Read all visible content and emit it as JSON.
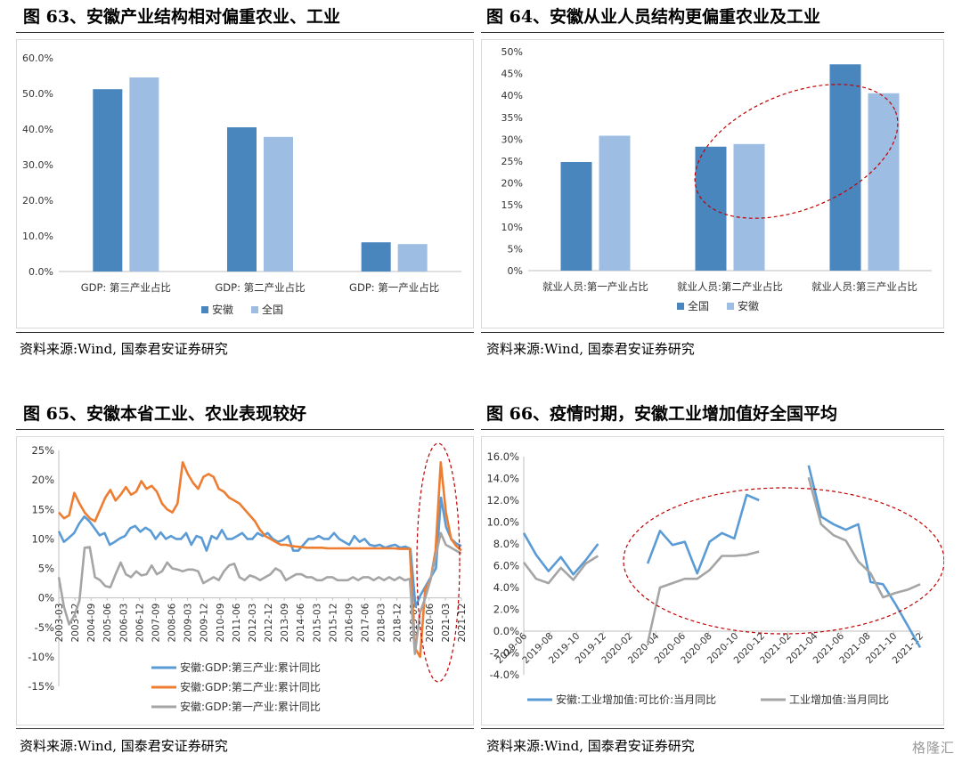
{
  "titles": {
    "p63": "图 63、安徽产业结构相对偏重农业、工业",
    "p64": "图 64、安徽从业人员结构更偏重农业及工业",
    "p65": "图 65、安徽本省工业、农业表现较好",
    "p66": "图 66、疫情时期，安徽工业增加值好全国平均"
  },
  "source_text": "资料来源:Wind, 国泰君安证券研究",
  "watermark": "格隆汇",
  "colors": {
    "dark_blue": "#4A86BE",
    "light_blue": "#9DBDE2",
    "orange": "#ED7D31",
    "gray": "#A5A5A5",
    "line_blue": "#5B9BD5",
    "ellipse": "#C00000"
  },
  "chart_data": [
    {
      "id": "p63",
      "type": "bar",
      "categories": [
        "GDP: 第三产业占比",
        "GDP: 第二产业占比",
        "GDP: 第一产业占比"
      ],
      "series": [
        {
          "name": "安徽",
          "values": [
            51.2,
            40.5,
            8.2
          ]
        },
        {
          "name": "全国",
          "values": [
            54.5,
            37.8,
            7.7
          ]
        }
      ],
      "ylim": [
        0,
        60
      ],
      "yticks": [
        "0.0%",
        "10.0%",
        "20.0%",
        "30.0%",
        "40.0%",
        "50.0%",
        "60.0%"
      ],
      "legend_position": "bottom"
    },
    {
      "id": "p64",
      "type": "bar",
      "categories": [
        "就业人员:第一产业占比",
        "就业人员:第二产业占比",
        "就业人员:第三产业占比"
      ],
      "series": [
        {
          "name": "全国",
          "values": [
            24.8,
            28.3,
            47.1
          ]
        },
        {
          "name": "安徽",
          "values": [
            30.8,
            28.9,
            40.5
          ]
        }
      ],
      "ylim": [
        0,
        50
      ],
      "yticks": [
        "0%",
        "5%",
        "10%",
        "15%",
        "20%",
        "25%",
        "30%",
        "35%",
        "40%",
        "45%",
        "50%"
      ],
      "legend_position": "bottom"
    },
    {
      "id": "p65",
      "type": "line",
      "x_ticks": [
        "2003-03",
        "2003-12",
        "2004-09",
        "2005-06",
        "2006-03",
        "2006-12",
        "2007-09",
        "2008-06",
        "2009-03",
        "2009-12",
        "2010-09",
        "2011-06",
        "2012-03",
        "2012-12",
        "2013-09",
        "2014-06",
        "2015-03",
        "2015-12",
        "2016-09",
        "2017-06",
        "2018-03",
        "2018-12",
        "2019-09",
        "2020-06",
        "2021-03",
        "2021-12"
      ],
      "ylim": [
        -15,
        25
      ],
      "yticks": [
        "-15%",
        "-10%",
        "-5%",
        "0%",
        "5%",
        "10%",
        "15%",
        "20%",
        "25%"
      ],
      "series": [
        {
          "name": "安徽:GDP:第三产业:累计同比",
          "color": "#5B9BD5",
          "values": [
            11.3,
            9.5,
            10.2,
            11.0,
            12.6,
            13.8,
            13.0,
            11.8,
            10.6,
            11.0,
            9.0,
            9.5,
            10.1,
            10.5,
            11.8,
            12.2,
            11.2,
            11.9,
            11.4,
            10.0,
            11.1,
            10.0,
            10.5,
            10.0,
            10.0,
            11.0,
            9.0,
            10.5,
            10.2,
            8.0,
            10.5,
            10.0,
            11.5,
            10.0,
            10.0,
            10.5,
            11.0,
            10.0,
            10.0,
            11.0,
            10.5,
            11.0,
            10.0,
            9.5,
            9.8,
            10.5,
            8.0,
            8.0,
            9.0,
            10.0,
            10.0,
            10.5,
            10.0,
            10.0,
            11.0,
            10.0,
            9.5,
            9.0,
            10.5,
            9.5,
            10.0,
            9.0,
            8.8,
            9.0,
            8.5,
            8.8,
            9.0,
            8.5,
            8.7,
            8.3,
            -1.5,
            0.5,
            2.0,
            3.5,
            5.0,
            17.0,
            12.0,
            10.0,
            9.2,
            8.8
          ]
        },
        {
          "name": "安徽:GDP:第二产业:累计同比",
          "color": "#ED7D31",
          "values": [
            14.5,
            13.5,
            14.0,
            17.8,
            16.0,
            14.5,
            13.5,
            13.0,
            15.0,
            17.0,
            18.3,
            16.5,
            17.5,
            18.8,
            17.5,
            18.0,
            19.8,
            18.5,
            19.0,
            18.0,
            16.0,
            15.0,
            14.5,
            16.0,
            23.0,
            21.0,
            19.5,
            18.5,
            20.5,
            21.0,
            20.5,
            18.5,
            18.0,
            17.0,
            16.5,
            16.0,
            15.0,
            14.0,
            13.0,
            11.5,
            10.5,
            10.0,
            9.5,
            9.0,
            9.0,
            8.8,
            8.7,
            8.6,
            8.5,
            8.5,
            8.5,
            8.5,
            8.4,
            8.4,
            8.4,
            8.4,
            8.4,
            8.4,
            8.4,
            8.4,
            8.4,
            8.4,
            8.4,
            8.4,
            8.4,
            8.4,
            8.3,
            8.3,
            8.3,
            -8.5,
            -10.0,
            1.5,
            3.0,
            8.0,
            23.0,
            14.5,
            10.0,
            8.8,
            8.0
          ]
        },
        {
          "name": "安徽:GDP:第一产业:累计同比",
          "color": "#A5A5A5",
          "values": [
            3.5,
            -1.5,
            -4.5,
            -3.0,
            -0.5,
            8.5,
            8.6,
            3.5,
            3.0,
            2.0,
            1.8,
            4.0,
            6.0,
            4.0,
            3.5,
            4.5,
            3.8,
            4.0,
            5.5,
            4.0,
            4.5,
            6.0,
            5.0,
            4.8,
            4.5,
            4.8,
            4.8,
            4.5,
            2.5,
            3.0,
            3.5,
            3.0,
            4.5,
            5.5,
            5.8,
            3.5,
            3.0,
            3.8,
            3.5,
            3.0,
            3.5,
            4.0,
            5.0,
            4.5,
            3.0,
            3.5,
            4.0,
            4.0,
            3.5,
            3.5,
            3.0,
            3.0,
            3.5,
            3.5,
            3.0,
            3.0,
            3.0,
            3.5,
            3.0,
            3.5,
            3.5,
            3.0,
            3.5,
            3.0,
            3.5,
            3.0,
            3.5,
            3.0,
            3.2,
            -9.5,
            -2.5,
            0.0,
            3.0,
            7.0,
            11.0,
            9.0,
            8.5,
            8.0,
            7.5
          ]
        }
      ],
      "legend_position": "bottom"
    },
    {
      "id": "p66",
      "type": "line",
      "x_ticks": [
        "2019-06",
        "2019-08",
        "2019-10",
        "2019-12",
        "2020-02",
        "2020-04",
        "2020-06",
        "2020-08",
        "2020-10",
        "2020-12",
        "2021-02",
        "2021-04",
        "2021-06",
        "2021-08",
        "2021-10",
        "2021-12"
      ],
      "ylim": [
        -4,
        16
      ],
      "yticks": [
        "-4.0%",
        "-2.0%",
        "0.0%",
        "2.0%",
        "4.0%",
        "6.0%",
        "8.0%",
        "10.0%",
        "12.0%",
        "14.0%",
        "16.0%"
      ],
      "series": [
        {
          "name": "安徽:工业增加值:可比价:当月同比",
          "color": "#5B9BD5",
          "values": [
            9.0,
            7.0,
            5.5,
            6.8,
            5.2,
            6.5,
            8.0,
            null,
            null,
            null,
            6.2,
            9.2,
            7.9,
            8.2,
            5.3,
            8.2,
            9.0,
            8.5,
            12.5,
            12.0,
            null,
            null,
            null,
            15.2,
            10.5,
            9.8,
            9.3,
            9.8,
            4.5,
            4.3,
            2.5,
            0.5,
            -1.5
          ]
        },
        {
          "name": "工业增加值:当月同比",
          "color": "#A5A5A5",
          "values": [
            6.3,
            4.8,
            4.4,
            5.8,
            4.7,
            6.2,
            6.9,
            null,
            null,
            null,
            -1.1,
            4.0,
            4.4,
            4.8,
            4.8,
            5.6,
            6.9,
            6.9,
            7.0,
            7.3,
            null,
            null,
            null,
            14.1,
            9.8,
            8.8,
            8.3,
            6.4,
            5.3,
            3.1,
            3.5,
            3.8,
            4.3
          ]
        }
      ],
      "legend_position": "bottom"
    }
  ]
}
